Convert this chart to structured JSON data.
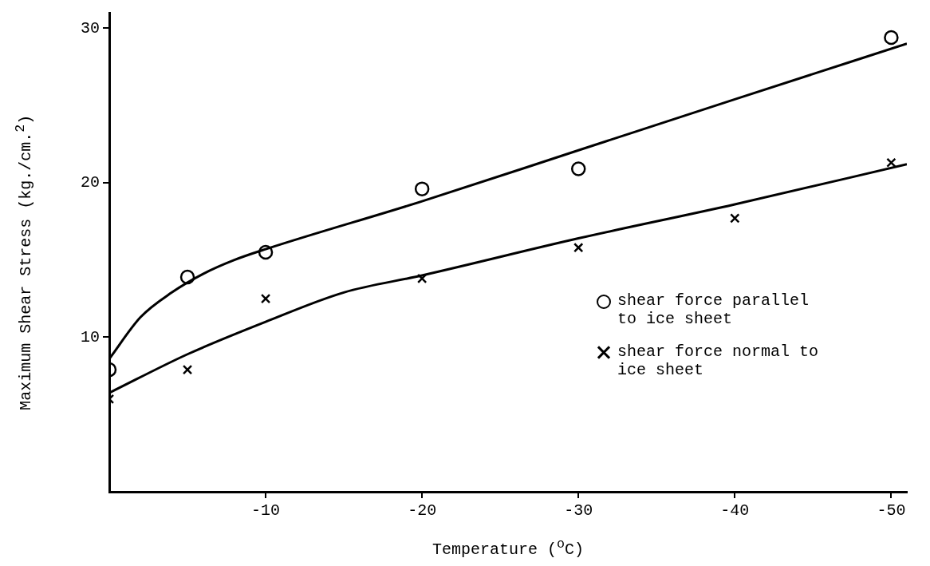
{
  "chart_data": {
    "type": "scatter",
    "xlabel": "Temperature ($^{o}$C)",
    "ylabel": "Maximum Shear Stress (kg./cm.$^{2}$)",
    "xlim": [
      0,
      -51
    ],
    "xticks": [
      -10,
      -20,
      -30,
      -40,
      -50
    ],
    "ylim": [
      0,
      31
    ],
    "yticks": [
      10,
      20,
      30
    ],
    "grid": false,
    "legend": "right",
    "series": [
      {
        "name": "shear force parallel to ice sheet",
        "color": "#000000",
        "marker": "circle",
        "x": [
          0,
          -5,
          -10,
          -20,
          -30,
          -50
        ],
        "values": [
          7.9,
          13.9,
          15.5,
          19.6,
          20.9,
          29.4
        ]
      },
      {
        "name": "shear force normal to ice sheet",
        "color": "#000000",
        "marker": "cross",
        "x": [
          0,
          -5,
          -10,
          -20,
          -30,
          -40,
          -50
        ],
        "values": [
          6.0,
          7.9,
          12.5,
          13.8,
          15.8,
          17.7,
          21.3
        ]
      },
      {
        "type": "line",
        "color": "#000000",
        "marker": "none",
        "line_style": "solid",
        "x": [
          0,
          -2,
          -4,
          -6,
          -8,
          -10,
          -20,
          -30,
          -40,
          -51
        ],
        "values": [
          8.6,
          11.3,
          12.9,
          14.1,
          15.0,
          15.7,
          18.8,
          22.1,
          25.4,
          29.0
        ]
      },
      {
        "type": "line",
        "color": "#000000",
        "marker": "none",
        "line_style": "solid",
        "x": [
          0,
          -5,
          -10,
          -15,
          -20,
          -30,
          -40,
          -51
        ],
        "values": [
          6.4,
          8.9,
          11.0,
          12.9,
          14.0,
          16.4,
          18.6,
          21.2
        ]
      }
    ]
  }
}
